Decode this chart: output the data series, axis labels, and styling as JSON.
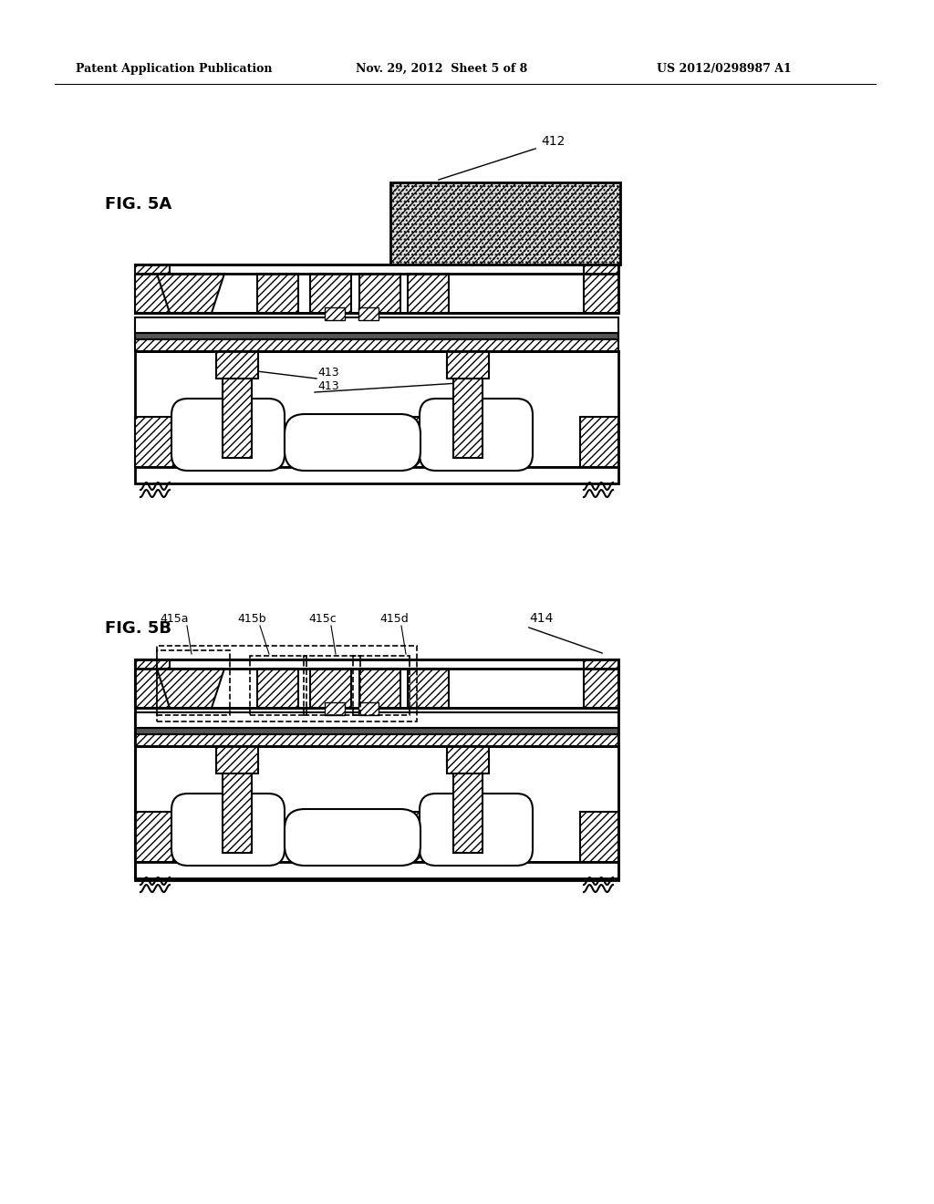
{
  "header_left": "Patent Application Publication",
  "header_mid": "Nov. 29, 2012  Sheet 5 of 8",
  "header_right": "US 2012/0298987 A1",
  "fig5a_label": "FIG. 5A",
  "fig5b_label": "FIG. 5B",
  "label_412": "412",
  "label_413": "413",
  "label_414": "414",
  "label_415a": "415a",
  "label_415b": "415b",
  "label_415c": "415c",
  "label_415d": "415d",
  "bg_color": "#ffffff"
}
